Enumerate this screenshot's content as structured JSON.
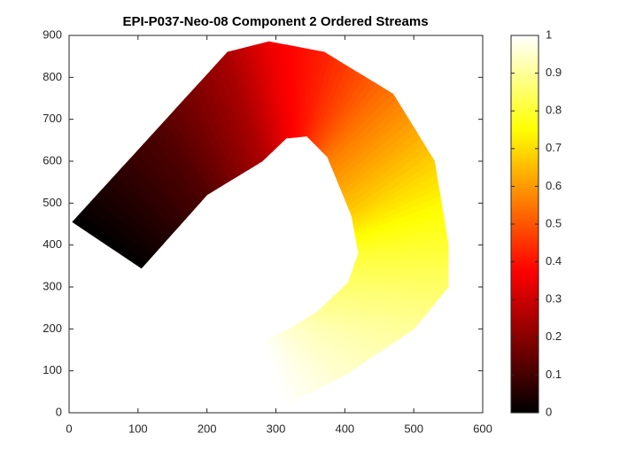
{
  "chart_data": {
    "type": "image",
    "title": "EPI-P037-Neo-08 Component 2 Ordered Streams",
    "xlim": [
      0,
      600
    ],
    "xticks": [
      0,
      100,
      200,
      300,
      400,
      500,
      600
    ],
    "ylim": [
      0,
      900
    ],
    "yticks": [
      0,
      100,
      200,
      300,
      400,
      500,
      600,
      700,
      800,
      900
    ],
    "colorbar": {
      "colormap": "hot",
      "lim": [
        0,
        1
      ],
      "ticks": [
        0,
        0.1,
        0.2,
        0.3,
        0.4,
        0.5,
        0.6,
        0.7,
        0.8,
        0.9,
        1
      ]
    }
  }
}
